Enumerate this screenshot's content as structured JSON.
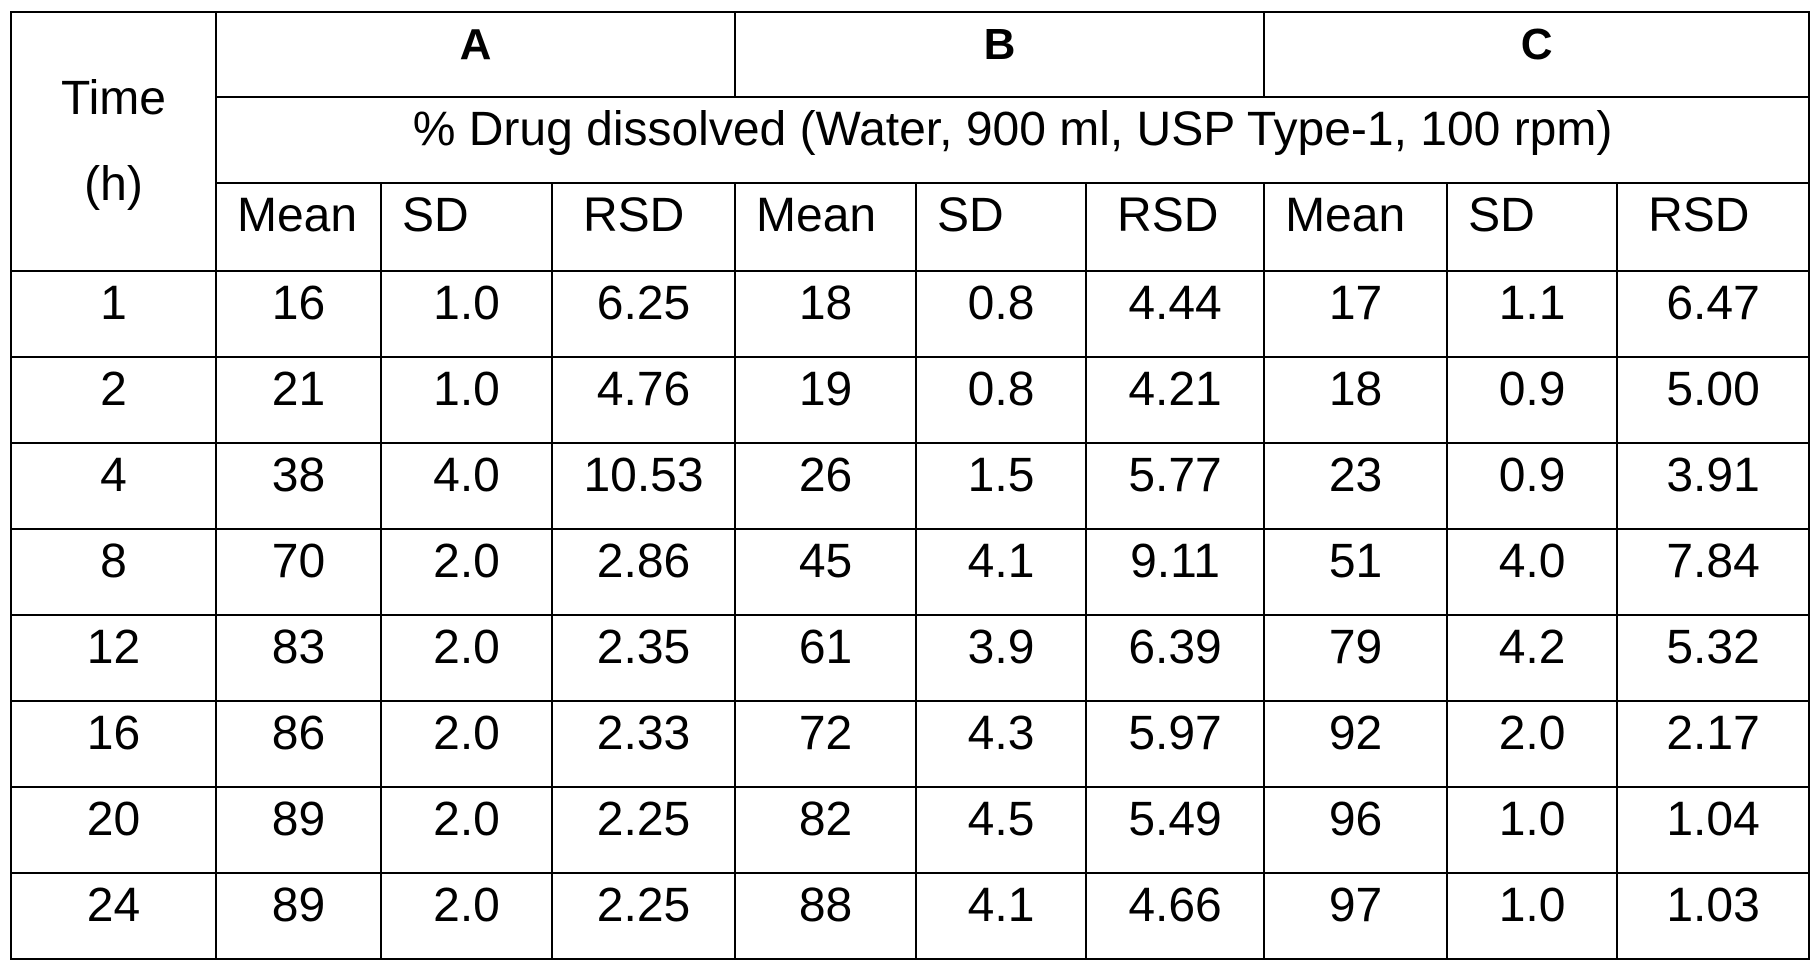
{
  "table": {
    "time_header": [
      "Time",
      "(h)"
    ],
    "groups": [
      "A",
      "B",
      "C"
    ],
    "span_header": "% Drug dissolved (Water, 900 ml, USP Type-1, 100 rpm)",
    "sub_headers": [
      "Mean",
      "SD",
      "RSD",
      "Mean",
      "SD",
      "RSD",
      "Mean",
      "SD",
      "RSD"
    ],
    "rows": [
      [
        "1",
        "16",
        "1.0",
        "6.25",
        "18",
        "0.8",
        "4.44",
        "17",
        "1.1",
        "6.47"
      ],
      [
        "2",
        "21",
        "1.0",
        "4.76",
        "19",
        "0.8",
        "4.21",
        "18",
        "0.9",
        "5.00"
      ],
      [
        "4",
        "38",
        "4.0",
        "10.53",
        "26",
        "1.5",
        "5.77",
        "23",
        "0.9",
        "3.91"
      ],
      [
        "8",
        "70",
        "2.0",
        "2.86",
        "45",
        "4.1",
        "9.11",
        "51",
        "4.0",
        "7.84"
      ],
      [
        "12",
        "83",
        "2.0",
        "2.35",
        "61",
        "3.9",
        "6.39",
        "79",
        "4.2",
        "5.32"
      ],
      [
        "16",
        "86",
        "2.0",
        "2.33",
        "72",
        "4.3",
        "5.97",
        "92",
        "2.0",
        "2.17"
      ],
      [
        "20",
        "89",
        "2.0",
        "2.25",
        "82",
        "4.5",
        "5.49",
        "96",
        "1.0",
        "1.04"
      ],
      [
        "24",
        "89",
        "2.0",
        "2.25",
        "88",
        "4.1",
        "4.66",
        "97",
        "1.0",
        "1.03"
      ]
    ]
  }
}
